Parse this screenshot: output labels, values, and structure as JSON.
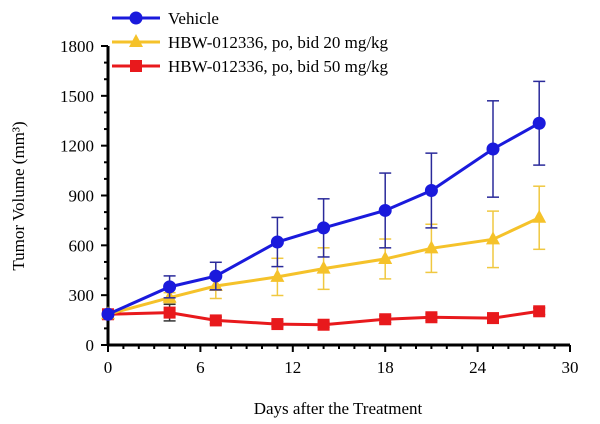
{
  "chart_data": {
    "type": "line",
    "title": "",
    "xlabel": "Days after the Treatment",
    "ylabel": "Tumor Volume (mm³)",
    "xlim": [
      0,
      30
    ],
    "ylim": [
      0,
      1800
    ],
    "xticks": [
      0,
      6,
      12,
      18,
      24,
      30
    ],
    "yticks": [
      0,
      300,
      600,
      900,
      1200,
      1500,
      1800
    ],
    "grid": false,
    "legend_position": "top-left",
    "x": [
      0,
      4,
      7,
      11,
      14,
      18,
      21,
      25,
      28
    ],
    "series": [
      {
        "name": "Vehicle",
        "color": "#1a1adc",
        "marker": "circle",
        "values": [
          185,
          350,
          415,
          620,
          705,
          810,
          930,
          1180,
          1335
        ],
        "error": [
          0,
          66,
          83,
          148,
          175,
          225,
          225,
          290,
          252
        ]
      },
      {
        "name": "HBW-012336, po, bid 20 mg/kg",
        "color": "#f5c22a",
        "marker": "triangle",
        "values": [
          185,
          285,
          355,
          410,
          460,
          518,
          582,
          636,
          766
        ],
        "error": [
          0,
          30,
          75,
          112,
          125,
          120,
          145,
          170,
          190
        ]
      },
      {
        "name": "HBW-012336, po, bid 50 mg/kg",
        "color": "#e8191c",
        "marker": "square",
        "values": [
          185,
          195,
          148,
          126,
          122,
          155,
          167,
          162,
          203
        ],
        "error": [
          0,
          50,
          20,
          15,
          15,
          20,
          20,
          20,
          20
        ]
      }
    ]
  }
}
